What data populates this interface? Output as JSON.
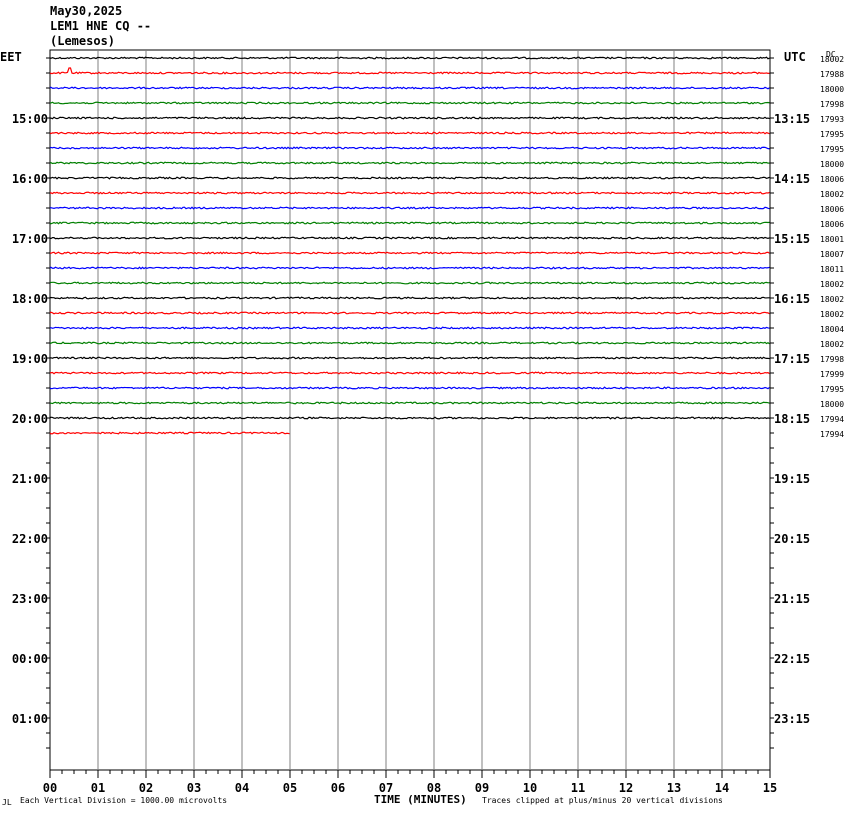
{
  "header": {
    "date": "May30,2025",
    "station": "LEM1 HNE CQ --",
    "location": "(Lemesos)"
  },
  "left_timezone": "EET",
  "right_timezone": "UTC",
  "dc_header": "DC",
  "colors": {
    "trace_cycle": [
      "#000000",
      "#ff0000",
      "#0000ff",
      "#007f00"
    ],
    "grid": "#808080"
  },
  "chart_data": {
    "type": "line",
    "description_rows": "seismic helicorder; each row is 15 minutes",
    "x_label": "TIME (MINUTES)",
    "x_ticks": [
      "00",
      "01",
      "02",
      "03",
      "04",
      "05",
      "06",
      "07",
      "08",
      "09",
      "10",
      "11",
      "12",
      "13",
      "14",
      "15"
    ],
    "xlim": [
      0,
      15
    ],
    "left_time_labels": [
      "15:00",
      "16:00",
      "17:00",
      "18:00",
      "19:00",
      "20:00",
      "21:00",
      "22:00",
      "23:00",
      "00:00",
      "01:00"
    ],
    "right_time_labels": [
      "13:15",
      "14:15",
      "15:15",
      "16:15",
      "17:15",
      "18:15",
      "19:15",
      "20:15",
      "21:15",
      "22:15",
      "23:15"
    ],
    "rows_total": 47,
    "trace_count": 26,
    "last_trace_end_minute": 5.0,
    "dc_offsets": [
      18002,
      17988,
      18000,
      17998,
      17993,
      17995,
      17995,
      18000,
      18006,
      18002,
      18006,
      18006,
      18001,
      18007,
      18011,
      18002,
      18002,
      18002,
      18004,
      18002,
      17998,
      17999,
      17995,
      18000,
      17994,
      17994
    ],
    "spike": {
      "trace_index": 1,
      "minute": 0.4
    }
  },
  "footer": {
    "left_mark": "JL",
    "scale_note": "Each Vertical Division = 1000.00 microvolts",
    "clip_note": "Traces clipped at plus/minus 20 vertical divisions"
  }
}
